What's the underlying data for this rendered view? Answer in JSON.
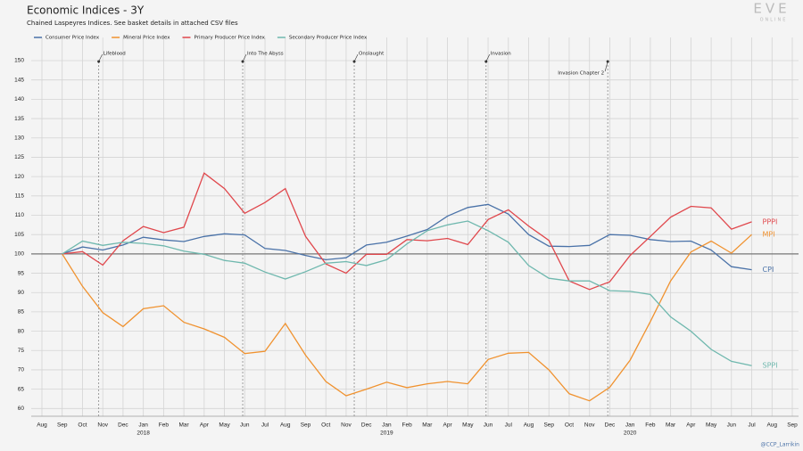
{
  "chart_data": {
    "type": "line",
    "title": "Economic Indices - 3Y",
    "subtitle": "Chained Laspeyres Indices. See basket details in attached CSV files",
    "logo": "EVE",
    "logo_sub": "ONLINE",
    "credit": "@CCP_Larrikin",
    "categories": [
      "Aug",
      "Sep",
      "Oct",
      "Nov",
      "Dec",
      "Jan",
      "Feb",
      "Mar",
      "Apr",
      "May",
      "Jun",
      "Jul",
      "Aug",
      "Sep",
      "Oct",
      "Nov",
      "Dec",
      "Jan",
      "Feb",
      "Mar",
      "Apr",
      "May",
      "Jun",
      "Jul",
      "Aug",
      "Sep",
      "Oct",
      "Nov",
      "Dec",
      "Jan",
      "Feb",
      "Mar",
      "Apr",
      "May",
      "Jun",
      "Jul",
      "Aug",
      "Sep"
    ],
    "year_labels": [
      null,
      null,
      null,
      null,
      null,
      "2018",
      null,
      null,
      null,
      null,
      null,
      null,
      null,
      null,
      null,
      null,
      null,
      "2019",
      null,
      null,
      null,
      null,
      null,
      null,
      null,
      null,
      null,
      null,
      null,
      "2020",
      null,
      null,
      null,
      null,
      null,
      null,
      null,
      null
    ],
    "ylim": [
      58,
      156
    ],
    "yticks": [
      60,
      65,
      70,
      75,
      80,
      85,
      90,
      95,
      100,
      105,
      110,
      115,
      120,
      125,
      130,
      135,
      140,
      145,
      150
    ],
    "baseline": 100,
    "grid": true,
    "events": [
      {
        "label": "Lifeblood",
        "at": 2.8
      },
      {
        "label": "Into The Abyss",
        "at": 9.9
      },
      {
        "label": "Onslaught",
        "at": 15.4
      },
      {
        "label": "Invasion",
        "at": 21.9
      },
      {
        "label": "Invasion Chapter 2",
        "at": 27.9
      }
    ],
    "series": [
      {
        "name": "Consumer Price Index",
        "end_label": "CPI",
        "color": "#4a72a8",
        "values": [
          null,
          100,
          101.8,
          101,
          102.3,
          104.3,
          103.6,
          103.2,
          104.5,
          105.2,
          104.9,
          101.4,
          100.9,
          99.6,
          98.5,
          99,
          102.3,
          103,
          104.6,
          106.3,
          109.8,
          112,
          112.8,
          110.3,
          105,
          102,
          101.9,
          102.2,
          105,
          104.8,
          103.7,
          103.2,
          103.3,
          101,
          96.7,
          95.9,
          null,
          null
        ]
      },
      {
        "name": "Mineral Price Index",
        "end_label": "MPI",
        "color": "#f0922f",
        "values": [
          null,
          100,
          91.6,
          84.8,
          81.2,
          85.8,
          86.6,
          82.3,
          80.6,
          78.4,
          74.2,
          74.8,
          82,
          73.8,
          67,
          63.3,
          65,
          66.8,
          65.4,
          66.4,
          67,
          66.4,
          72.7,
          74.3,
          74.5,
          70,
          63.8,
          62,
          65.5,
          72.5,
          82.5,
          93,
          100.5,
          103.3,
          100.2,
          105,
          null,
          null
        ]
      },
      {
        "name": "Primary Producer Price Index",
        "end_label": "PPPI",
        "color": "#e0474c",
        "values": [
          null,
          100,
          100.6,
          97.1,
          103.4,
          107.1,
          105.5,
          106.9,
          120.9,
          116.9,
          110.5,
          113.3,
          116.9,
          104.5,
          97.4,
          95,
          99.9,
          99.9,
          103.7,
          103.4,
          104,
          102.4,
          108.9,
          111.4,
          107.2,
          103.5,
          93,
          90.8,
          92.8,
          99.6,
          104.5,
          109.5,
          112.3,
          111.9,
          106.4,
          108.3,
          null,
          null
        ]
      },
      {
        "name": "Secondary Producer Price Index",
        "end_label": "SPPI",
        "color": "#6fb8ae",
        "values": [
          null,
          100,
          103.3,
          102.2,
          103,
          102.7,
          102.1,
          100.7,
          99.9,
          98.3,
          97.6,
          95.3,
          93.5,
          95.4,
          97.6,
          98,
          97,
          98.5,
          102.6,
          106,
          107.5,
          108.5,
          106,
          103,
          97,
          93.7,
          93,
          93,
          90.5,
          90.3,
          89.5,
          83.7,
          80,
          75.3,
          72.2,
          71.1,
          null,
          null
        ]
      }
    ]
  }
}
